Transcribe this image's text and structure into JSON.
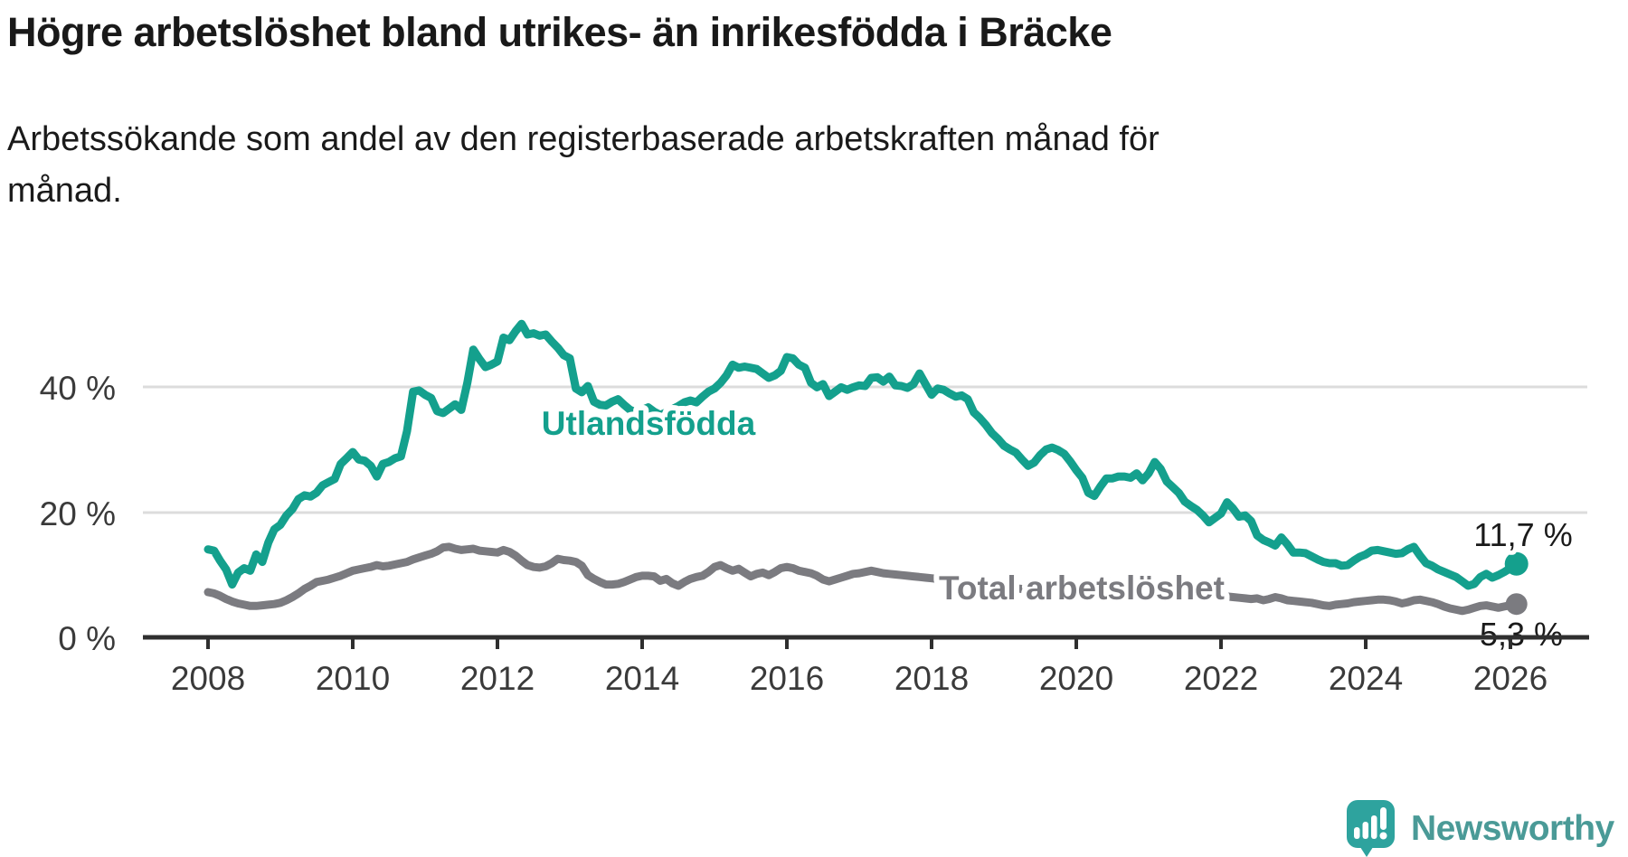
{
  "chart_data": {
    "type": "line",
    "title": "Högre arbetslöshet bland utrikes- än inrikesfödda i Bräcke",
    "subtitle_lines": [
      "Arbetssökande som andel av den registerbaserade arbetskraften månad för",
      "månad."
    ],
    "x_start": "2008-01",
    "x_end": "2026-02",
    "frequency": "monthly",
    "x_tick_years": [
      2008,
      2010,
      2012,
      2014,
      2016,
      2018,
      2020,
      2022,
      2024,
      2026
    ],
    "x_tick_labels": [
      "2008",
      "2010",
      "2012",
      "2014",
      "2016",
      "2018",
      "2020",
      "2022",
      "2024",
      "2026"
    ],
    "y_tick_labels": [
      "0 %",
      "20 %",
      "40 %"
    ],
    "y_tick_values": [
      0,
      20,
      40
    ],
    "ylim": [
      0,
      52
    ],
    "grid": "horizontal-only",
    "legend": "inline-labels",
    "series": [
      {
        "name": "Utlandsfödda",
        "color": "#14a08d",
        "end_label": "11,7 %",
        "end_value": 11.7,
        "values": [
          14.0,
          13.8,
          12.2,
          10.8,
          8.4,
          10.3,
          11.0,
          10.6,
          13.2,
          12.0,
          15.1,
          17.2,
          17.9,
          19.4,
          20.4,
          22.0,
          22.6,
          22.4,
          23.0,
          24.2,
          24.7,
          25.2,
          27.6,
          28.5,
          29.5,
          28.3,
          28.1,
          27.3,
          25.6,
          27.6,
          27.9,
          28.5,
          28.8,
          32.8,
          39.1,
          39.3,
          38.6,
          38.1,
          36.0,
          35.7,
          36.4,
          37.1,
          36.2,
          40.5,
          45.8,
          44.3,
          43.0,
          43.4,
          43.9,
          47.7,
          47.3,
          48.7,
          49.9,
          48.2,
          48.4,
          48.0,
          48.2,
          47.1,
          46.1,
          44.9,
          44.4,
          39.6,
          39.0,
          40.0,
          37.5,
          37.0,
          36.9,
          37.5,
          37.9,
          37.0,
          36.2,
          35.8,
          36.2,
          36.6,
          35.9,
          35.4,
          35.8,
          36.3,
          36.8,
          37.4,
          37.7,
          37.4,
          38.3,
          39.1,
          39.6,
          40.5,
          41.7,
          43.4,
          42.9,
          43.1,
          42.9,
          42.7,
          42.0,
          41.3,
          41.7,
          42.4,
          44.6,
          44.4,
          43.4,
          42.9,
          40.5,
          39.8,
          40.3,
          38.4,
          39.1,
          39.8,
          39.4,
          39.8,
          40.1,
          40.0,
          41.3,
          41.4,
          40.7,
          41.5,
          40.1,
          40.0,
          39.7,
          40.3,
          42.0,
          40.3,
          38.6,
          39.6,
          39.4,
          38.8,
          38.3,
          38.5,
          37.9,
          35.8,
          34.9,
          33.8,
          32.5,
          31.6,
          30.5,
          29.9,
          29.4,
          28.3,
          27.3,
          27.8,
          29.0,
          29.9,
          30.2,
          29.8,
          29.2,
          28.0,
          26.6,
          25.4,
          23.0,
          22.5,
          24.0,
          25.3,
          25.3,
          25.6,
          25.6,
          25.4,
          26.1,
          25.0,
          26.1,
          27.9,
          26.8,
          24.8,
          23.9,
          23.0,
          21.6,
          20.9,
          20.3,
          19.4,
          18.3,
          19.0,
          19.7,
          21.5,
          20.5,
          19.2,
          19.4,
          18.5,
          16.2,
          15.5,
          15.1,
          14.6,
          15.9,
          14.8,
          13.5,
          13.5,
          13.4,
          12.9,
          12.4,
          12.0,
          11.8,
          11.8,
          11.4,
          11.5,
          12.2,
          12.8,
          13.2,
          13.8,
          13.9,
          13.7,
          13.5,
          13.3,
          13.4,
          14.0,
          14.4,
          13.0,
          11.8,
          11.4,
          10.8,
          10.4,
          10.0,
          9.6,
          8.9,
          8.2,
          8.5,
          9.6,
          10.1,
          9.5,
          9.9,
          10.4,
          11.0,
          11.7
        ]
      },
      {
        "name": "Total arbetslöshet",
        "color": "#7b7b80",
        "end_label": "5,3 %",
        "end_value": 5.3,
        "values": [
          7.2,
          7.0,
          6.6,
          6.1,
          5.7,
          5.4,
          5.2,
          5.0,
          5.0,
          5.1,
          5.2,
          5.3,
          5.5,
          5.9,
          6.4,
          7.0,
          7.7,
          8.2,
          8.8,
          9.0,
          9.2,
          9.5,
          9.8,
          10.2,
          10.6,
          10.8,
          11.0,
          11.2,
          11.5,
          11.3,
          11.4,
          11.6,
          11.8,
          12.0,
          12.4,
          12.7,
          13.0,
          13.3,
          13.7,
          14.3,
          14.4,
          14.1,
          13.9,
          14.0,
          14.1,
          13.8,
          13.7,
          13.6,
          13.5,
          13.9,
          13.6,
          13.0,
          12.2,
          11.5,
          11.2,
          11.1,
          11.3,
          11.8,
          12.5,
          12.3,
          12.2,
          12.0,
          11.4,
          9.9,
          9.3,
          8.8,
          8.4,
          8.4,
          8.5,
          8.8,
          9.2,
          9.6,
          9.8,
          9.8,
          9.7,
          9.0,
          9.3,
          8.6,
          8.2,
          8.8,
          9.3,
          9.6,
          9.8,
          10.4,
          11.2,
          11.5,
          11.0,
          10.6,
          10.9,
          10.3,
          9.7,
          10.1,
          10.3,
          9.9,
          10.4,
          11.0,
          11.2,
          11.0,
          10.6,
          10.4,
          10.2,
          9.8,
          9.2,
          8.9,
          9.2,
          9.5,
          9.8,
          10.1,
          10.2,
          10.4,
          10.6,
          10.4,
          10.2,
          10.1,
          10.0,
          9.9,
          9.8,
          9.7,
          9.6,
          9.5,
          9.4,
          9.3,
          9.2,
          9.0,
          8.9,
          8.8,
          8.6,
          8.5,
          8.4,
          8.3,
          8.2,
          8.1,
          8.0,
          7.9,
          7.8,
          7.7,
          7.6,
          7.6,
          7.7,
          7.7,
          7.6,
          7.5,
          7.4,
          7.4,
          7.3,
          7.3,
          7.6,
          8.3,
          8.6,
          8.8,
          8.9,
          8.8,
          8.7,
          8.5,
          8.4,
          8.3,
          8.2,
          8.1,
          7.9,
          7.7,
          7.5,
          7.3,
          7.1,
          6.9,
          6.7,
          6.6,
          6.5,
          6.4,
          6.4,
          6.5,
          6.4,
          6.3,
          6.2,
          6.1,
          6.2,
          5.9,
          6.1,
          6.4,
          6.2,
          5.9,
          5.8,
          5.7,
          5.6,
          5.5,
          5.3,
          5.1,
          5.0,
          5.2,
          5.3,
          5.4,
          5.6,
          5.7,
          5.8,
          5.9,
          6.0,
          6.0,
          5.9,
          5.7,
          5.4,
          5.6,
          5.9,
          6.0,
          5.8,
          5.6,
          5.3,
          4.9,
          4.6,
          4.4,
          4.2,
          4.4,
          4.7,
          5.0,
          5.1,
          4.9,
          4.7,
          4.9,
          5.1,
          5.3
        ]
      }
    ]
  },
  "branding": {
    "logo_text": "Newsworthy",
    "logo_icon": "newsworthy-speech-bubble-bar-chart-icon"
  },
  "colors": {
    "foreign_born_line": "#14a08d",
    "total_line": "#7b7b80",
    "axis": "#2f2f2f",
    "gridline": "#dcdcdc",
    "title_text": "#191919",
    "tick_label_text": "#3a3a3a",
    "end_label_text": "#1a1a1a",
    "logo_bubble": "#2ea39e",
    "logo_text_color": "#4a9a97"
  }
}
